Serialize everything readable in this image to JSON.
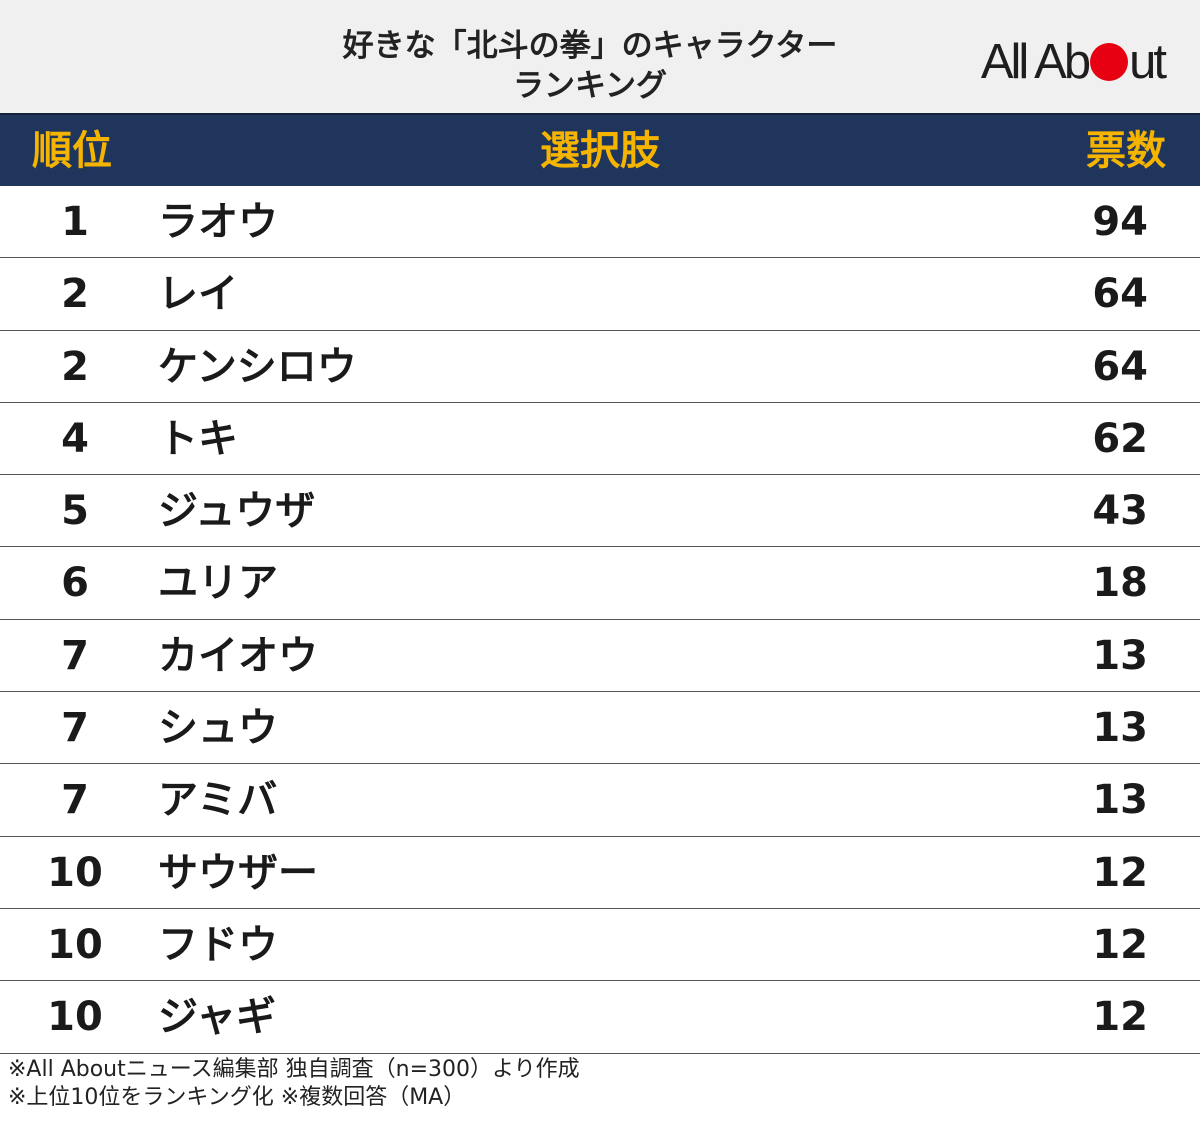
{
  "header": {
    "title_line1": "好きな「北斗の拳」のキャラクター",
    "title_line2": "ランキング",
    "logo_text_left": "All Ab",
    "logo_text_right": "ut",
    "logo_dot_color": "#e60012"
  },
  "columns": {
    "rank": "順位",
    "choice": "選択肢",
    "votes": "票数"
  },
  "colors": {
    "header_band": "#20355c",
    "header_text": "#f5b400",
    "title_background": "#f0f0f0"
  },
  "chart_data": {
    "type": "table",
    "title": "好きな「北斗の拳」のキャラクターランキング",
    "columns": [
      "順位",
      "選択肢",
      "票数"
    ],
    "rows": [
      {
        "rank": "1",
        "name": "ラオウ",
        "votes": "94"
      },
      {
        "rank": "2",
        "name": "レイ",
        "votes": "64"
      },
      {
        "rank": "2",
        "name": "ケンシロウ",
        "votes": "64"
      },
      {
        "rank": "4",
        "name": "トキ",
        "votes": "62"
      },
      {
        "rank": "5",
        "name": "ジュウザ",
        "votes": "43"
      },
      {
        "rank": "6",
        "name": "ユリア",
        "votes": "18"
      },
      {
        "rank": "7",
        "name": "カイオウ",
        "votes": "13"
      },
      {
        "rank": "7",
        "name": "シュウ",
        "votes": "13"
      },
      {
        "rank": "7",
        "name": "アミバ",
        "votes": "13"
      },
      {
        "rank": "10",
        "name": "サウザー",
        "votes": "12"
      },
      {
        "rank": "10",
        "name": "フドウ",
        "votes": "12"
      },
      {
        "rank": "10",
        "name": "ジャギ",
        "votes": "12"
      }
    ]
  },
  "footer": {
    "note1": "※All Aboutニュース編集部 独自調査（n=300）より作成",
    "note2": "※上位10位をランキング化 ※複数回答（MA）"
  }
}
